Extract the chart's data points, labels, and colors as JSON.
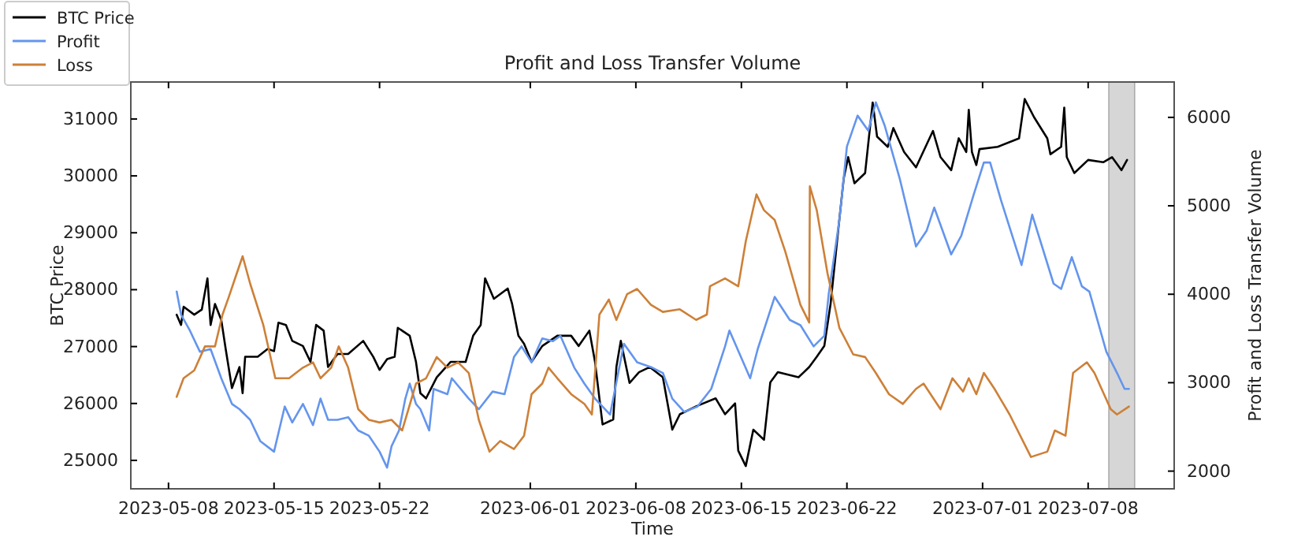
{
  "chart_data": {
    "type": "line",
    "title": "Profit and Loss Transfer Volume",
    "xlabel": "Time",
    "ylabel": "BTC Price",
    "y2label": "Profit and Loss Transfer Volume",
    "xlim": [
      "2023-05-05T12:00",
      "2023-07-13T17:00"
    ],
    "xticks": [
      "2023-05-08",
      "2023-05-15",
      "2023-05-22",
      "2023-06-01",
      "2023-06-08",
      "2023-06-15",
      "2023-06-22",
      "2023-07-01",
      "2023-07-08"
    ],
    "ylim": [
      24500,
      31650
    ],
    "yticks": [
      25000,
      26000,
      27000,
      28000,
      29000,
      30000,
      31000
    ],
    "y2lim": [
      1800,
      6400
    ],
    "y2ticks": [
      2000,
      3000,
      4000,
      5000,
      6000
    ],
    "grid": false,
    "legend": "top left",
    "tick_labels": "all",
    "bands": [
      {
        "axis": "x",
        "from": "2023-07-09T09:00",
        "to": "2023-07-11T02:00",
        "color": "#d6d6d6"
      }
    ],
    "series": [
      {
        "name": "BTC Price",
        "color": "#000000",
        "x": [
          "2023-05-08T13:00",
          "2023-05-08T20:00",
          "2023-05-09T00:00",
          "2023-05-09T17:00",
          "2023-05-10T05:00",
          "2023-05-10T14:00",
          "2023-05-10T19:00",
          "2023-05-11T02:00",
          "2023-05-11T12:00",
          "2023-05-11T19:00",
          "2023-05-12T05:00",
          "2023-05-12T17:00",
          "2023-05-12T22:00",
          "2023-05-13T02:00",
          "2023-05-13T22:00",
          "2023-05-14T14:00",
          "2023-05-15T00:00",
          "2023-05-15T07:00",
          "2023-05-15T19:00",
          "2023-05-16T05:00",
          "2023-05-16T22:00",
          "2023-05-17T10:00",
          "2023-05-17T19:00",
          "2023-05-18T07:00",
          "2023-05-18T14:00",
          "2023-05-19T05:00",
          "2023-05-19T22:00",
          "2023-05-20T22:00",
          "2023-05-21T14:00",
          "2023-05-22T00:00",
          "2023-05-22T12:00",
          "2023-05-23T00:00",
          "2023-05-23T05:00",
          "2023-05-24T00:00",
          "2023-05-24T10:00",
          "2023-05-24T17:00",
          "2023-05-25T02:00",
          "2023-05-25T19:00",
          "2023-05-26T17:00",
          "2023-05-27T17:00",
          "2023-05-28T05:00",
          "2023-05-28T17:00",
          "2023-05-29T00:00",
          "2023-05-29T14:00",
          "2023-05-30T12:00",
          "2023-05-30T19:00",
          "2023-05-31T05:00",
          "2023-05-31T14:00",
          "2023-06-01T02:00",
          "2023-06-01T19:00",
          "2023-06-02T19:00",
          "2023-06-03T17:00",
          "2023-06-04T05:00",
          "2023-06-04T22:00",
          "2023-06-05T07:00",
          "2023-06-05T19:00",
          "2023-06-06T12:00",
          "2023-06-06T17:00",
          "2023-06-07T00:00",
          "2023-06-07T14:00",
          "2023-06-08T05:00",
          "2023-06-08T22:00",
          "2023-06-09T19:00",
          "2023-06-10T10:00",
          "2023-06-10T22:00",
          "2023-06-12T00:00",
          "2023-06-13T07:00",
          "2023-06-13T22:00",
          "2023-06-14T14:00",
          "2023-06-14T19:00",
          "2023-06-15T07:00",
          "2023-06-15T19:00",
          "2023-06-16T12:00",
          "2023-06-16T22:00",
          "2023-06-17T10:00",
          "2023-06-18T19:00",
          "2023-06-19T12:00",
          "2023-06-20T00:00",
          "2023-06-20T12:00",
          "2023-06-20T22:00",
          "2023-06-21T10:00",
          "2023-06-21T19:00",
          "2023-06-22T02:00",
          "2023-06-22T12:00",
          "2023-06-23T05:00",
          "2023-06-23T17:00",
          "2023-06-24T00:00",
          "2023-06-24T17:00",
          "2023-06-25T02:00",
          "2023-06-25T19:00",
          "2023-06-26T14:00",
          "2023-06-27T17:00",
          "2023-06-28T05:00",
          "2023-06-28T22:00",
          "2023-06-29T10:00",
          "2023-06-29T22:00",
          "2023-06-30T02:00",
          "2023-06-30T07:00",
          "2023-06-30T14:00",
          "2023-06-30T19:00",
          "2023-07-02T00:00",
          "2023-07-03T10:00",
          "2023-07-03T19:00",
          "2023-07-04T10:00",
          "2023-07-05T07:00",
          "2023-07-05T12:00",
          "2023-07-06T05:00",
          "2023-07-06T10:00",
          "2023-07-06T14:00",
          "2023-07-07T02:00",
          "2023-07-08T00:00",
          "2023-07-09T00:00",
          "2023-07-09T14:00",
          "2023-07-10T05:00",
          "2023-07-10T14:00"
        ],
        "values": [
          27560,
          27380,
          27700,
          27560,
          27650,
          28200,
          27380,
          27750,
          27470,
          26960,
          26270,
          26640,
          26180,
          26820,
          26820,
          26960,
          26920,
          27420,
          27380,
          27100,
          27010,
          26730,
          27380,
          27280,
          26640,
          26870,
          26870,
          27100,
          26820,
          26590,
          26780,
          26820,
          27330,
          27190,
          26730,
          26180,
          26090,
          26460,
          26730,
          26730,
          27190,
          27380,
          28200,
          27840,
          28020,
          27750,
          27190,
          27050,
          26730,
          27010,
          27190,
          27190,
          27010,
          27280,
          26730,
          25630,
          25720,
          26640,
          27100,
          26360,
          26550,
          26640,
          26460,
          25540,
          25810,
          25950,
          26090,
          25810,
          26000,
          25170,
          24900,
          25540,
          25360,
          26370,
          26550,
          26460,
          26640,
          26820,
          27010,
          27750,
          29030,
          29960,
          30330,
          29870,
          30050,
          31290,
          30690,
          30510,
          30840,
          30420,
          30150,
          30790,
          30330,
          30100,
          30660,
          30420,
          31160,
          30420,
          30190,
          30470,
          30510,
          30660,
          31350,
          31030,
          30660,
          30380,
          30510,
          31200,
          30330,
          30050,
          30280,
          30240,
          30330,
          30100,
          30280
        ]
      },
      {
        "name": "Profit",
        "color": "#6495ed",
        "axis": "y2",
        "x": [
          "2023-05-08T13:00",
          "2023-05-08T20:00",
          "2023-05-09T10:00",
          "2023-05-10T02:00",
          "2023-05-10T19:00",
          "2023-05-11T12:00",
          "2023-05-12T05:00",
          "2023-05-12T17:00",
          "2023-05-13T10:00",
          "2023-05-14T02:00",
          "2023-05-15T00:00",
          "2023-05-15T17:00",
          "2023-05-16T05:00",
          "2023-05-16T22:00",
          "2023-05-17T14:00",
          "2023-05-18T02:00",
          "2023-05-18T14:00",
          "2023-05-19T05:00",
          "2023-05-19T22:00",
          "2023-05-20T14:00",
          "2023-05-21T07:00",
          "2023-05-22T00:00",
          "2023-05-22T12:00",
          "2023-05-22T19:00",
          "2023-05-23T07:00",
          "2023-05-23T17:00",
          "2023-05-24T00:00",
          "2023-05-24T10:00",
          "2023-05-24T17:00",
          "2023-05-25T07:00",
          "2023-05-25T14:00",
          "2023-05-26T12:00",
          "2023-05-26T19:00",
          "2023-05-27T22:00",
          "2023-05-28T14:00",
          "2023-05-29T12:00",
          "2023-05-30T07:00",
          "2023-05-30T22:00",
          "2023-05-31T10:00",
          "2023-06-01T02:00",
          "2023-06-01T19:00",
          "2023-06-02T12:00",
          "2023-06-03T00:00",
          "2023-06-03T22:00",
          "2023-06-04T14:00",
          "2023-06-05T07:00",
          "2023-06-06T07:00",
          "2023-06-07T05:00",
          "2023-06-08T02:00",
          "2023-06-09T02:00",
          "2023-06-09T19:00",
          "2023-06-10T10:00",
          "2023-06-11T05:00",
          "2023-06-12T02:00",
          "2023-06-13T00:00",
          "2023-06-13T22:00",
          "2023-06-14T05:00",
          "2023-06-15T14:00",
          "2023-06-16T02:00",
          "2023-06-17T05:00",
          "2023-06-18T05:00",
          "2023-06-18T22:00",
          "2023-06-19T19:00",
          "2023-06-20T12:00",
          "2023-06-20T19:00",
          "2023-06-21T12:00",
          "2023-06-22T00:00",
          "2023-06-22T17:00",
          "2023-06-23T10:00",
          "2023-06-23T22:00",
          "2023-06-24T12:00",
          "2023-06-25T12:00",
          "2023-06-26T14:00",
          "2023-06-27T07:00",
          "2023-06-27T19:00",
          "2023-06-28T22:00",
          "2023-06-29T14:00",
          "2023-06-30T10:00",
          "2023-07-01T02:00",
          "2023-07-01T12:00",
          "2023-07-02T05:00",
          "2023-07-03T14:00",
          "2023-07-04T07:00",
          "2023-07-05T17:00",
          "2023-07-06T05:00",
          "2023-07-06T22:00",
          "2023-07-07T14:00",
          "2023-07-08T02:00",
          "2023-07-09T05:00",
          "2023-07-09T22:00",
          "2023-07-10T10:00",
          "2023-07-10T17:00"
        ],
        "values": [
          4030,
          3770,
          3590,
          3350,
          3380,
          3050,
          2760,
          2700,
          2580,
          2340,
          2220,
          2730,
          2550,
          2760,
          2520,
          2820,
          2580,
          2580,
          2610,
          2460,
          2400,
          2220,
          2040,
          2280,
          2460,
          2820,
          2990,
          2760,
          2700,
          2460,
          2930,
          2870,
          3050,
          2820,
          2700,
          2900,
          2870,
          3290,
          3410,
          3230,
          3500,
          3470,
          3530,
          3170,
          2990,
          2820,
          2640,
          3440,
          3230,
          3170,
          3110,
          2820,
          2670,
          2730,
          2930,
          3410,
          3590,
          3050,
          3380,
          3970,
          3710,
          3650,
          3410,
          3530,
          4000,
          4840,
          5670,
          6020,
          5850,
          6170,
          5910,
          5310,
          4540,
          4720,
          4980,
          4450,
          4660,
          5130,
          5490,
          5490,
          5070,
          4330,
          4900,
          4120,
          4060,
          4420,
          4090,
          4030,
          3350,
          3110,
          2930,
          2930
        ]
      },
      {
        "name": "Loss",
        "color": "#cd8038",
        "axis": "y2",
        "x": [
          "2023-05-08T13:00",
          "2023-05-09T00:00",
          "2023-05-09T17:00",
          "2023-05-10T10:00",
          "2023-05-11T02:00",
          "2023-05-11T14:00",
          "2023-05-12T00:00",
          "2023-05-12T10:00",
          "2023-05-12T22:00",
          "2023-05-13T10:00",
          "2023-05-14T07:00",
          "2023-05-15T02:00",
          "2023-05-16T00:00",
          "2023-05-16T22:00",
          "2023-05-17T14:00",
          "2023-05-18T02:00",
          "2023-05-18T19:00",
          "2023-05-19T07:00",
          "2023-05-19T22:00",
          "2023-05-20T14:00",
          "2023-05-21T07:00",
          "2023-05-22T00:00",
          "2023-05-22T19:00",
          "2023-05-23T12:00",
          "2023-05-24T10:00",
          "2023-05-25T02:00",
          "2023-05-25T19:00",
          "2023-05-26T12:00",
          "2023-05-27T05:00",
          "2023-05-27T22:00",
          "2023-05-28T14:00",
          "2023-05-29T07:00",
          "2023-05-30T00:00",
          "2023-05-30T22:00",
          "2023-05-31T14:00",
          "2023-06-01T02:00",
          "2023-06-01T19:00",
          "2023-06-02T05:00",
          "2023-06-02T19:00",
          "2023-06-03T17:00",
          "2023-06-04T14:00",
          "2023-06-05T02:00",
          "2023-06-05T14:00",
          "2023-06-06T05:00",
          "2023-06-06T17:00",
          "2023-06-07T10:00",
          "2023-06-08T02:00",
          "2023-06-09T00:00",
          "2023-06-09T19:00",
          "2023-06-10T22:00",
          "2023-06-12T00:00",
          "2023-06-12T17:00",
          "2023-06-12T22:00",
          "2023-06-13T22:00",
          "2023-06-14T19:00",
          "2023-06-15T07:00",
          "2023-06-16T00:00",
          "2023-06-16T12:00",
          "2023-06-17T05:00",
          "2023-06-17T22:00",
          "2023-06-18T22:00",
          "2023-06-19T12:00",
          "2023-06-19T13:00",
          "2023-06-20T00:00",
          "2023-06-20T17:00",
          "2023-06-21T12:00",
          "2023-06-22T10:00",
          "2023-06-23T05:00",
          "2023-06-23T22:00",
          "2023-06-24T19:00",
          "2023-06-25T17:00",
          "2023-06-26T14:00",
          "2023-06-27T02:00",
          "2023-06-28T05:00",
          "2023-06-29T00:00",
          "2023-06-29T17:00",
          "2023-06-30T02:00",
          "2023-06-30T14:00",
          "2023-07-01T02:00",
          "2023-07-01T19:00",
          "2023-07-02T19:00",
          "2023-07-04T05:00",
          "2023-07-05T07:00",
          "2023-07-05T19:00",
          "2023-07-06T12:00",
          "2023-07-07T00:00",
          "2023-07-07T22:00",
          "2023-07-08T10:00",
          "2023-07-09T12:00",
          "2023-07-09T22:00",
          "2023-07-10T17:00"
        ],
        "values": [
          2840,
          3050,
          3140,
          3410,
          3410,
          3770,
          3970,
          4180,
          4430,
          4120,
          3650,
          3050,
          3050,
          3170,
          3230,
          3050,
          3170,
          3410,
          3170,
          2700,
          2580,
          2550,
          2580,
          2460,
          2990,
          3050,
          3290,
          3170,
          3230,
          3110,
          2580,
          2220,
          2340,
          2250,
          2400,
          2870,
          2990,
          3170,
          3050,
          2870,
          2760,
          2640,
          3770,
          3940,
          3710,
          4000,
          4060,
          3880,
          3800,
          3830,
          3710,
          3770,
          4090,
          4180,
          4090,
          4600,
          5130,
          4950,
          4840,
          4480,
          3880,
          3680,
          5220,
          4950,
          4240,
          3620,
          3320,
          3290,
          3110,
          2870,
          2760,
          2930,
          2990,
          2700,
          3050,
          2900,
          3050,
          2870,
          3110,
          2930,
          2640,
          2160,
          2220,
          2460,
          2400,
          3110,
          3230,
          3110,
          2700,
          2640,
          2730
        ]
      }
    ]
  }
}
